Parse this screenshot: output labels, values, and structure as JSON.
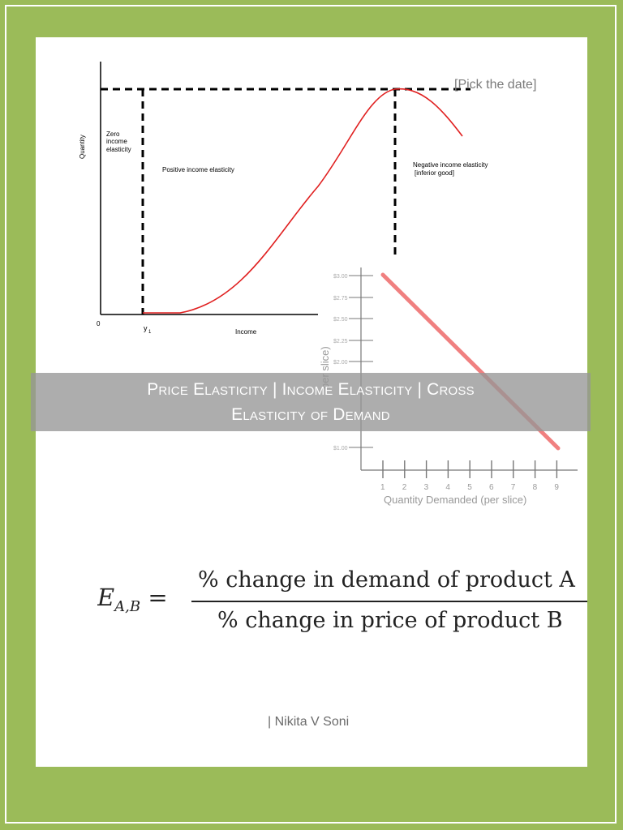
{
  "header": {
    "date_placeholder": "[Pick the date]"
  },
  "income_chart": {
    "y_axis_label": "Quantity",
    "x_axis_label": "Income",
    "origin_label": "0",
    "y1_label": "y",
    "y1_subscript": "1",
    "zero_region": [
      "Zero",
      "income",
      "elasticity"
    ],
    "positive_region": "Positive income elasticity",
    "negative_region": [
      "Negative income elasticity",
      "[inferior good]"
    ],
    "curve_color": "#e02020"
  },
  "demand_chart": {
    "y_ticks": [
      "$3.00",
      "$2.75",
      "$2.50",
      "$2.25",
      "$2.00",
      "$1.00"
    ],
    "y_axis_label": "per slice)",
    "x_ticks": [
      "1",
      "2",
      "3",
      "4",
      "5",
      "6",
      "7",
      "8",
      "9"
    ],
    "x_axis_label": "Quantity Demanded (per slice)",
    "line_color": "#f08080"
  },
  "title": {
    "line1": "Price Elasticity | Income Elasticity | Cross",
    "line2": "Elasticity of Demand"
  },
  "formula": {
    "lhs_main": "E",
    "lhs_sub": "A,B",
    "equals": " =",
    "numerator": "% change in demand of product A",
    "denominator": "% change in price of product B"
  },
  "footer": {
    "author": "| Nikita V Soni"
  },
  "colors": {
    "border": "#9bbb59",
    "band": "#969696"
  }
}
